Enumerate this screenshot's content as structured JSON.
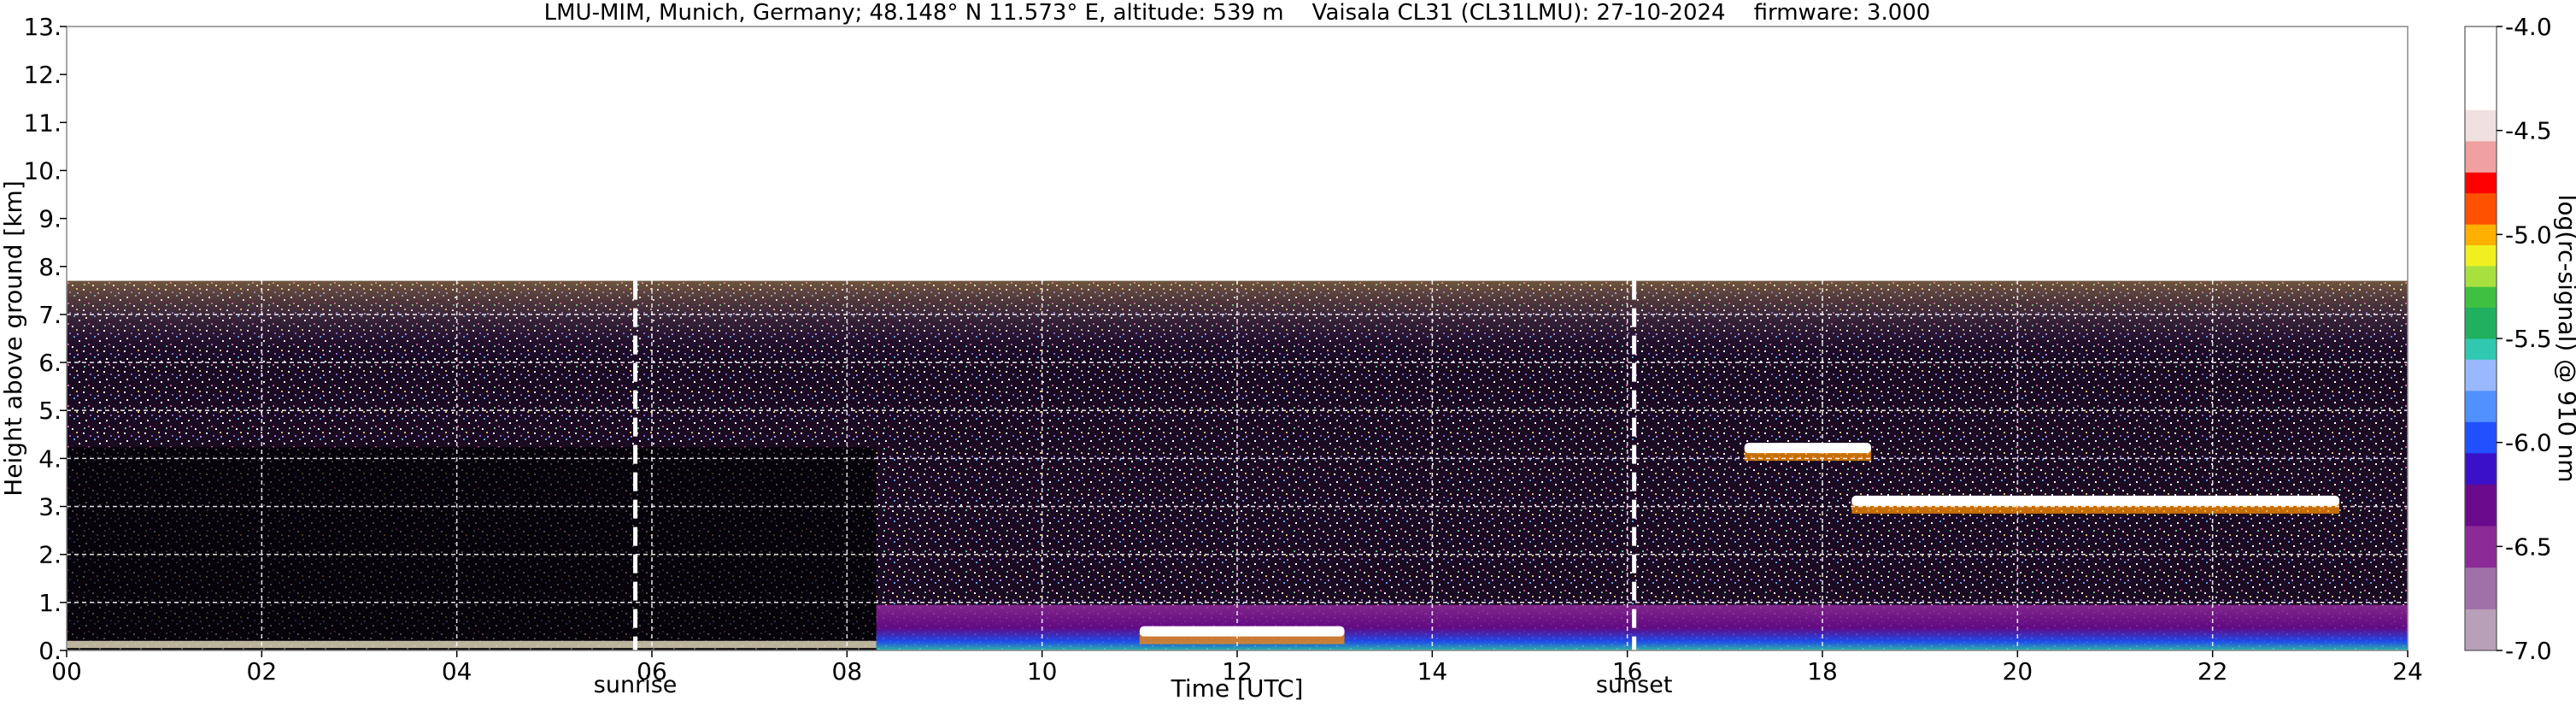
{
  "chart_data": {
    "type": "heatmap",
    "title": "LMU-MIM, Munich, Germany; 48.148° N 11.573° E, altitude: 539 m    Vaisala CL31 (CL31LMU): 27-10-2024    firmware: 3.000",
    "xlabel": "Time [UTC]",
    "ylabel": "Height above ground [km]",
    "xlim": [
      0,
      24
    ],
    "ylim": [
      0,
      13
    ],
    "x_ticks": [
      0,
      2,
      4,
      6,
      8,
      10,
      12,
      14,
      16,
      18,
      20,
      22,
      24
    ],
    "x_tick_labels": [
      "00",
      "02",
      "04",
      "06",
      "08",
      "10",
      "12",
      "14",
      "16",
      "18",
      "20",
      "22",
      "24"
    ],
    "y_ticks": [
      0,
      1,
      2,
      3,
      4,
      5,
      6,
      7,
      8,
      9,
      10,
      11,
      12,
      13
    ],
    "y_tick_labels": [
      "0.",
      "1.",
      "2.",
      "3.",
      "4.",
      "5.",
      "6.",
      "7.",
      "8.",
      "9.",
      "10.",
      "11.",
      "12.",
      "13."
    ],
    "grid": true,
    "data_top_km": 7.7,
    "event_lines": [
      {
        "time": 5.83,
        "label": "sunrise"
      },
      {
        "time": 16.07,
        "label": "sunset"
      }
    ],
    "colorbar": {
      "label": "log(rc-signal) @ 910 nm",
      "range": [
        -7.0,
        -4.0
      ],
      "ticks": [
        -4.0,
        -4.5,
        -5.0,
        -5.5,
        -6.0,
        -6.5,
        -7.0
      ],
      "tick_labels": [
        "-4.0",
        "-4.5",
        "-5.0",
        "-5.5",
        "-6.0",
        "-6.5",
        "-7.0"
      ],
      "stops": [
        {
          "value": -7.0,
          "color": "#b8a0b8"
        },
        {
          "value": -6.8,
          "color": "#a070a8"
        },
        {
          "value": -6.6,
          "color": "#8c2a96"
        },
        {
          "value": -6.4,
          "color": "#6a0a8c"
        },
        {
          "value": -6.2,
          "color": "#3a10c8"
        },
        {
          "value": -6.05,
          "color": "#2050ff"
        },
        {
          "value": -5.9,
          "color": "#5090ff"
        },
        {
          "value": -5.75,
          "color": "#9ab8ff"
        },
        {
          "value": -5.6,
          "color": "#30c8b0"
        },
        {
          "value": -5.5,
          "color": "#20b060"
        },
        {
          "value": -5.35,
          "color": "#40c040"
        },
        {
          "value": -5.25,
          "color": "#a8e040"
        },
        {
          "value": -5.15,
          "color": "#f0f020"
        },
        {
          "value": -5.05,
          "color": "#ffb000"
        },
        {
          "value": -4.95,
          "color": "#ff5000"
        },
        {
          "value": -4.8,
          "color": "#ff0000"
        },
        {
          "value": -4.7,
          "color": "#f0a0a0"
        },
        {
          "value": -4.55,
          "color": "#f0e0e0"
        },
        {
          "value": -4.4,
          "color": "#ffffff"
        },
        {
          "value": -4.0,
          "color": "#ffffff"
        }
      ]
    },
    "features": [
      {
        "name": "boundary layer",
        "start": 8.3,
        "end": 24,
        "bottom_km": 0,
        "top_km": 0.95
      },
      {
        "name": "surface return",
        "start": 0,
        "end": 8.3,
        "bottom_km": 0.05,
        "top_km": 0.2
      },
      {
        "name": "cloud",
        "start": 11.0,
        "end": 13.1,
        "base_km": 0.38
      },
      {
        "name": "cloud",
        "start": 17.2,
        "end": 18.5,
        "base_km": 4.2
      },
      {
        "name": "cloud",
        "start": 18.3,
        "end": 23.3,
        "base_km": 3.1
      }
    ],
    "colors": {
      "background": "#ffffff",
      "noise_dark": "#000000",
      "grid": "#ffffff",
      "frame": "#888888"
    }
  }
}
